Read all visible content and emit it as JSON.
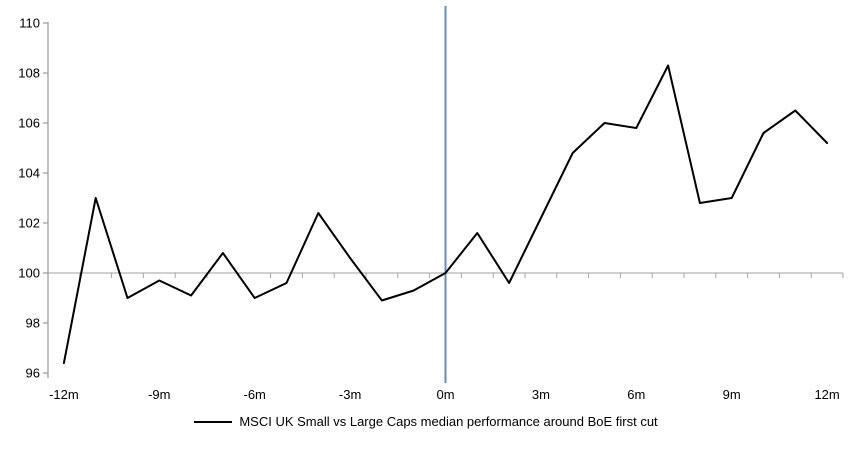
{
  "chart_data": {
    "type": "line",
    "title": "",
    "legend": "MSCI UK Small vs Large Caps median performance around BoE first cut",
    "xlabel": "",
    "ylabel": "",
    "x_months": [
      -12,
      -11,
      -10,
      -9,
      -8,
      -7,
      -6,
      -5,
      -4,
      -3,
      -2,
      -1,
      0,
      1,
      2,
      3,
      4,
      5,
      6,
      7,
      8,
      9,
      10,
      11,
      12
    ],
    "series": [
      {
        "name": "MSCI UK Small vs Large Caps median performance around BoE first cut",
        "color": "#000000",
        "values": [
          96.4,
          103.0,
          99.0,
          99.7,
          99.1,
          100.8,
          99.0,
          99.6,
          102.4,
          100.6,
          98.9,
          99.3,
          100.0,
          101.6,
          99.6,
          102.2,
          104.8,
          106.0,
          105.8,
          108.3,
          102.8,
          103.0,
          105.6,
          106.5,
          105.2
        ]
      }
    ],
    "x_tick_labels": [
      "-12m",
      "-9m",
      "-6m",
      "-3m",
      "0m",
      "3m",
      "6m",
      "9m",
      "12m"
    ],
    "x_tick_step_months": 3,
    "y_ticks": [
      96,
      98,
      100,
      102,
      104,
      106,
      108,
      110
    ],
    "ylim": [
      96,
      110
    ],
    "xlim_months": [
      -12,
      12
    ],
    "grid": "off",
    "legend_position": "bottom-center",
    "reference_lines": {
      "horizontal": {
        "value": 100,
        "color": "#C0C0C0"
      },
      "vertical": {
        "at_month": 0,
        "color": "#5B8FC9"
      }
    },
    "axis_color": "#A6A6A6",
    "tick_label_color": "#000000"
  }
}
